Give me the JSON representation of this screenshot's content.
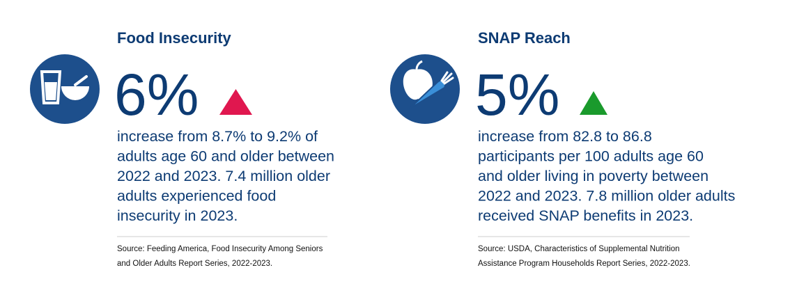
{
  "cards": [
    {
      "title": "Food Insecurity",
      "stat": "6%",
      "description": [
        "increase from 8.7% to 9.2% of",
        "adults age 60 and older between",
        "2022 and 2023. 7.4 million older",
        "adults experienced food",
        "insecurity in 2023."
      ],
      "source": [
        "Source: Feeding America, Food Insecurity Among Seniors",
        "and Older Adults Report Series, 2022-2023."
      ]
    },
    {
      "title": "SNAP Reach",
      "stat": "5%",
      "description": [
        "increase from 82.8 to 86.8",
        "participants per 100 adults age 60",
        "and older living in poverty between",
        "2022 and 2023. 7.8 million older adults",
        "received SNAP benefits in 2023."
      ],
      "source": [
        "Source: USDA, Characteristics of Supplemental Nutrition",
        "Assistance Program Households Report Series, 2022-2023."
      ]
    }
  ]
}
